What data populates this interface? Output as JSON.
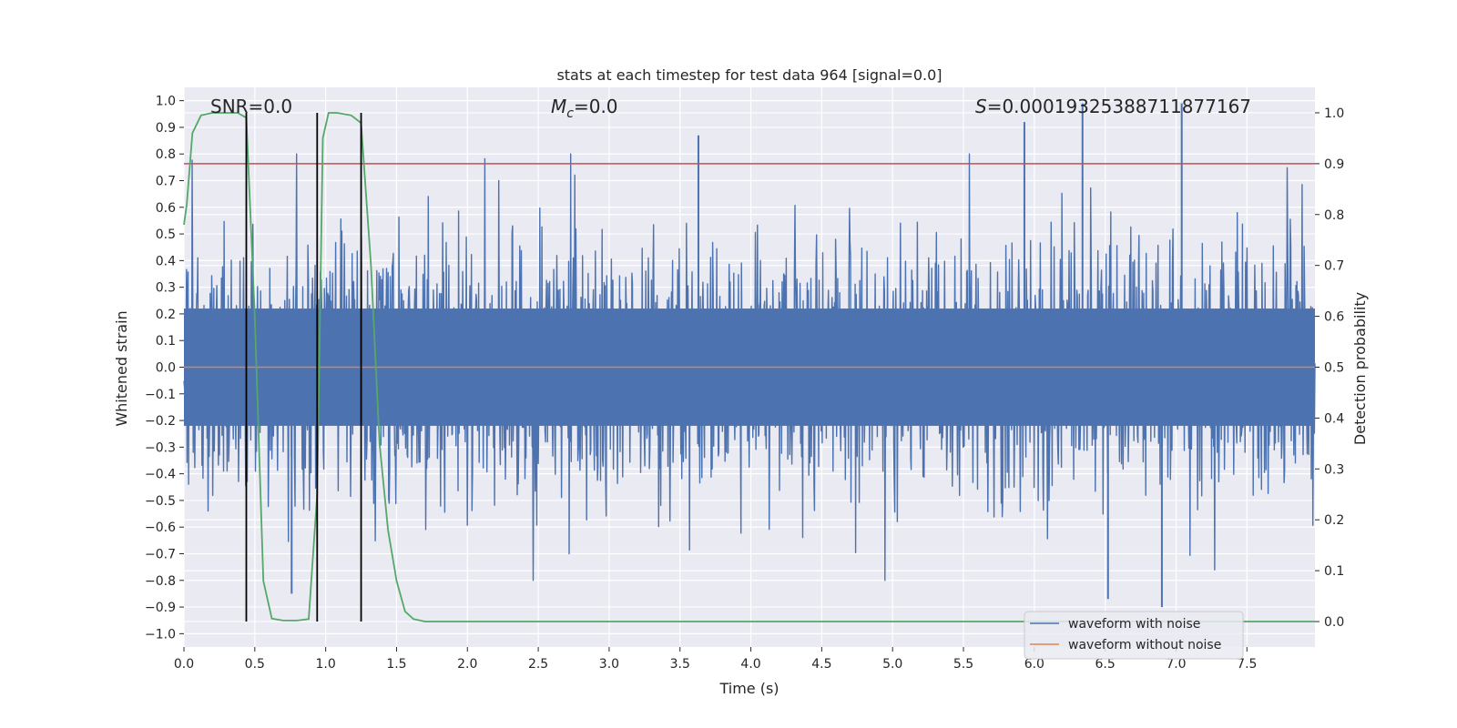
{
  "chart_data": {
    "type": "line",
    "title": "stats at each timestep for test data 964 [signal=0.0]",
    "xlabel": "Time (s)",
    "ylabel": "Whitened strain",
    "y2label": "Detection probability",
    "xlim": [
      0.0,
      7.98
    ],
    "ylim": [
      -1.05,
      1.05
    ],
    "y2lim": [
      -0.05,
      1.05
    ],
    "xticks": [
      "0.0",
      "0.5",
      "1.0",
      "1.5",
      "2.0",
      "2.5",
      "3.0",
      "3.5",
      "4.0",
      "4.5",
      "5.0",
      "5.5",
      "6.0",
      "6.5",
      "7.0",
      "7.5"
    ],
    "yticks": [
      "1.0",
      "0.9",
      "0.8",
      "0.7",
      "0.6",
      "0.5",
      "0.4",
      "0.3",
      "0.2",
      "0.1",
      "0.0",
      "−0.1",
      "−0.2",
      "−0.3",
      "−0.4",
      "−0.5",
      "−0.6",
      "−0.7",
      "−0.8",
      "−0.9",
      "−1.0"
    ],
    "y2ticks": [
      "1.0",
      "0.9",
      "0.8",
      "0.7",
      "0.6",
      "0.5",
      "0.4",
      "0.3",
      "0.2",
      "0.1",
      "0.0"
    ],
    "annotations": {
      "snr": "SNR=0.0",
      "mc_symbol": "M",
      "mc_subscript": "c",
      "mc_value": "=0.0",
      "s_symbol": "S",
      "s_value": "=0.00019325388711877167"
    },
    "threshold_line": {
      "y2": 0.9,
      "color": "#c44e52"
    },
    "vertical_lines_x": [
      0.44,
      0.94,
      1.25
    ],
    "series": [
      {
        "name": "waveform with noise",
        "color": "#4c72b0",
        "description": "whitened noise, roughly within ±0.6, peaks near ±0.9",
        "typical_amplitude": 0.6,
        "peak_events": [
          {
            "x": 3.63,
            "y": 0.87
          },
          {
            "x": 5.93,
            "y": 0.92
          },
          {
            "x": 6.34,
            "y": 0.99
          },
          {
            "x": 7.04,
            "y": 0.99
          },
          {
            "x": 6.52,
            "y": -0.87
          },
          {
            "x": 6.9,
            "y": -0.9
          },
          {
            "x": 0.76,
            "y": -0.85
          }
        ]
      },
      {
        "name": "waveform without noise",
        "color": "#dd8452",
        "values_const": 0.0
      },
      {
        "name": "detection probability",
        "color": "#55a868",
        "axis": "right",
        "x": [
          0.0,
          0.02,
          0.06,
          0.12,
          0.2,
          0.3,
          0.38,
          0.44,
          0.5,
          0.56,
          0.62,
          0.7,
          0.8,
          0.88,
          0.94,
          0.98,
          1.02,
          1.08,
          1.18,
          1.25,
          1.32,
          1.38,
          1.44,
          1.5,
          1.56,
          1.62,
          1.7,
          2.0,
          7.98
        ],
        "values": [
          0.78,
          0.82,
          0.96,
          0.995,
          1.0,
          1.0,
          1.0,
          0.99,
          0.6,
          0.08,
          0.006,
          0.002,
          0.002,
          0.005,
          0.25,
          0.95,
          1.0,
          1.0,
          0.995,
          0.98,
          0.7,
          0.35,
          0.18,
          0.08,
          0.02,
          0.005,
          0.0,
          0.0,
          0.0
        ]
      }
    ],
    "legend": {
      "position": "lower-right",
      "entries": [
        {
          "label": "waveform with noise",
          "color": "#4c72b0"
        },
        {
          "label": "waveform without noise",
          "color": "#dd8452"
        }
      ]
    }
  }
}
